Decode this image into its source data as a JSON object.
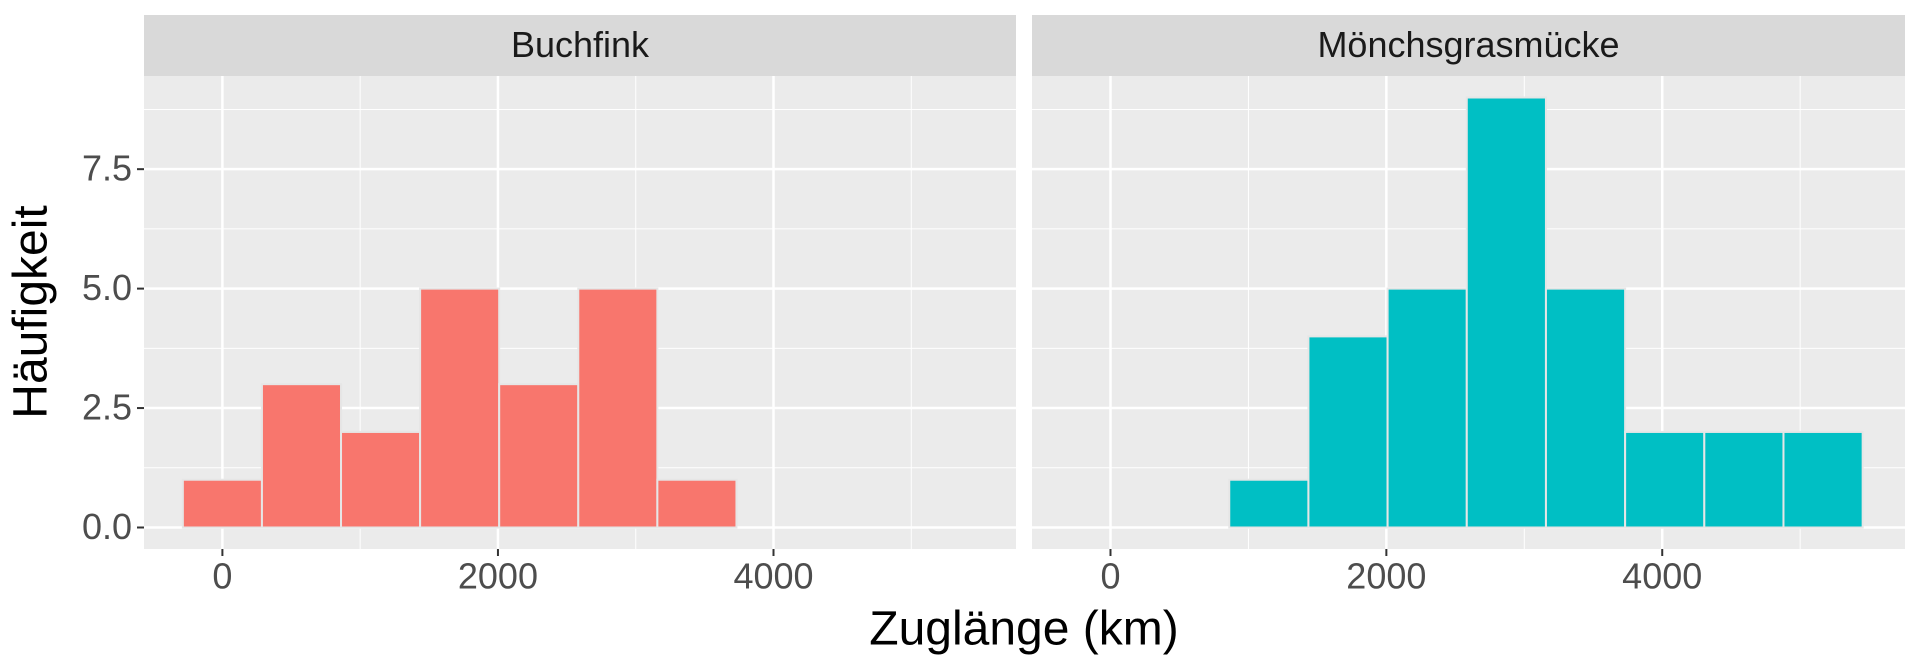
{
  "chart_data": {
    "type": "histogram",
    "x_label": "Zuglänge (km)",
    "y_label": "Häufigkeit",
    "xlim": [
      -569,
      5760
    ],
    "xticks": [
      0,
      2000,
      4000
    ],
    "ylim": [
      -0.45,
      9.45
    ],
    "yticks": [
      {
        "value": 0,
        "label": "0.0"
      },
      2.5,
      {
        "value": 5,
        "label": "5.0"
      },
      7.5
    ],
    "grid": true,
    "bins": [
      -287,
      287,
      861,
      1435,
      2009,
      2583,
      3157,
      3731,
      4305,
      4879,
      5453
    ],
    "facets": [
      {
        "title": "Buchfink",
        "color": "#f8766d",
        "counts": [
          1,
          3,
          2,
          5,
          3,
          5,
          1,
          0,
          0,
          0
        ]
      },
      {
        "title": "Mönchsgrasmücke",
        "color": "#00bfc4",
        "counts": [
          0,
          0,
          1,
          4,
          5,
          9,
          5,
          2,
          2,
          2
        ]
      }
    ]
  }
}
